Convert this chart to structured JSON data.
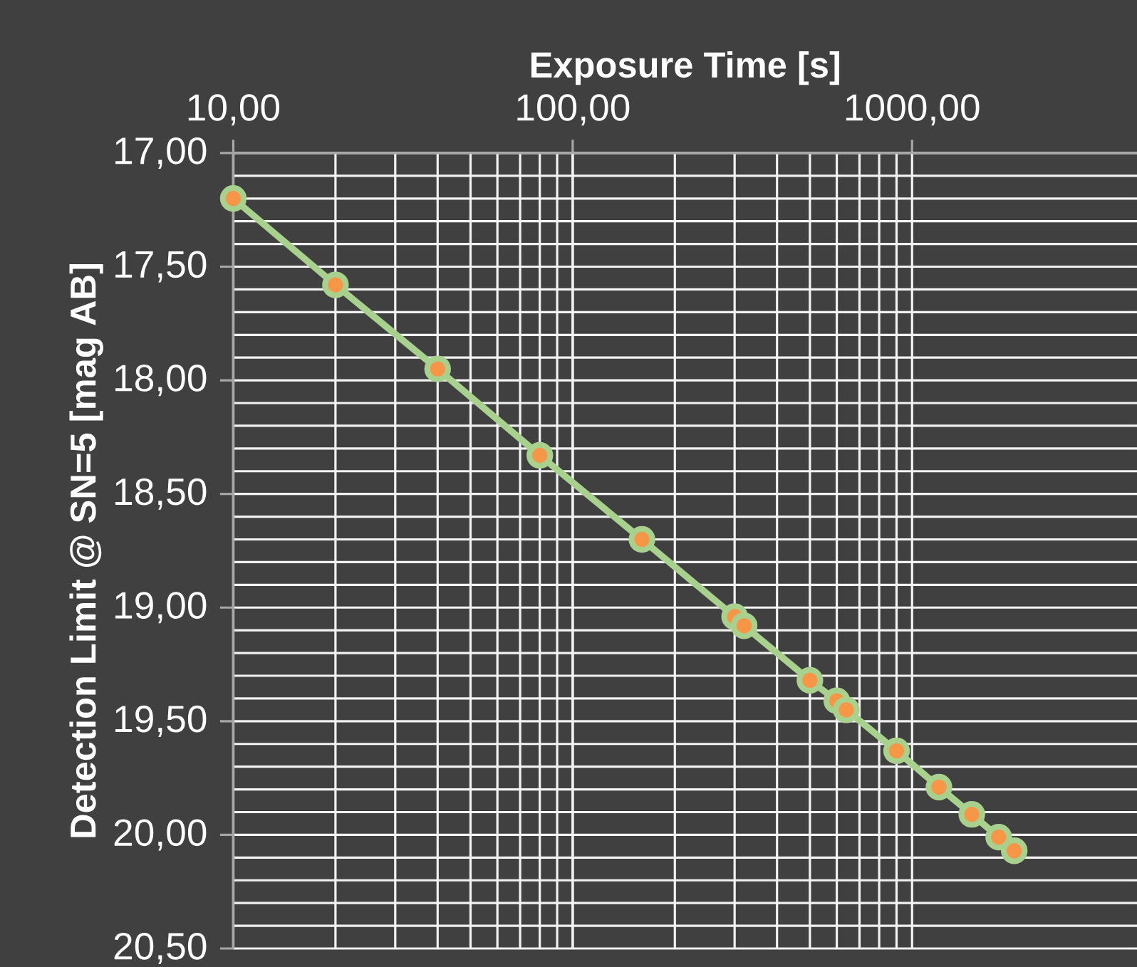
{
  "chart_data": {
    "type": "line",
    "xlabel": "Exposure Time [s]",
    "ylabel": "Detection Limit @ SN=5  [mag AB]",
    "x": [
      10,
      20,
      40,
      80,
      160,
      300,
      320,
      500,
      600,
      640,
      900,
      1200,
      1500,
      1800,
      2000
    ],
    "series": [
      {
        "color": "#a9d18e",
        "values": [
          17.2,
          17.58,
          17.95,
          18.33,
          18.7,
          19.04,
          19.08,
          19.32,
          19.41,
          19.45,
          19.63,
          19.79,
          19.91,
          20.01,
          20.07
        ]
      }
    ],
    "log": "x",
    "xlim": [
      10,
      4600
    ],
    "ylim": [
      20.5,
      17
    ],
    "xticks": [
      {
        "value": 10,
        "label": "10,00"
      },
      {
        "value": 100,
        "label": "100,00"
      },
      {
        "value": 1000,
        "label": "1000,00"
      }
    ],
    "yticks": [
      {
        "value": 17,
        "label": "17,00"
      },
      {
        "value": 17.5,
        "label": "17,50"
      },
      {
        "value": 18,
        "label": "18,00"
      },
      {
        "value": 18.5,
        "label": "18,50"
      },
      {
        "value": 19,
        "label": "19,00"
      },
      {
        "value": 19.5,
        "label": "19,50"
      },
      {
        "value": 20,
        "label": "20,00"
      },
      {
        "value": 20.5,
        "label": "20,50"
      }
    ],
    "grid": true,
    "marker": "circle",
    "line_style": "solid"
  }
}
